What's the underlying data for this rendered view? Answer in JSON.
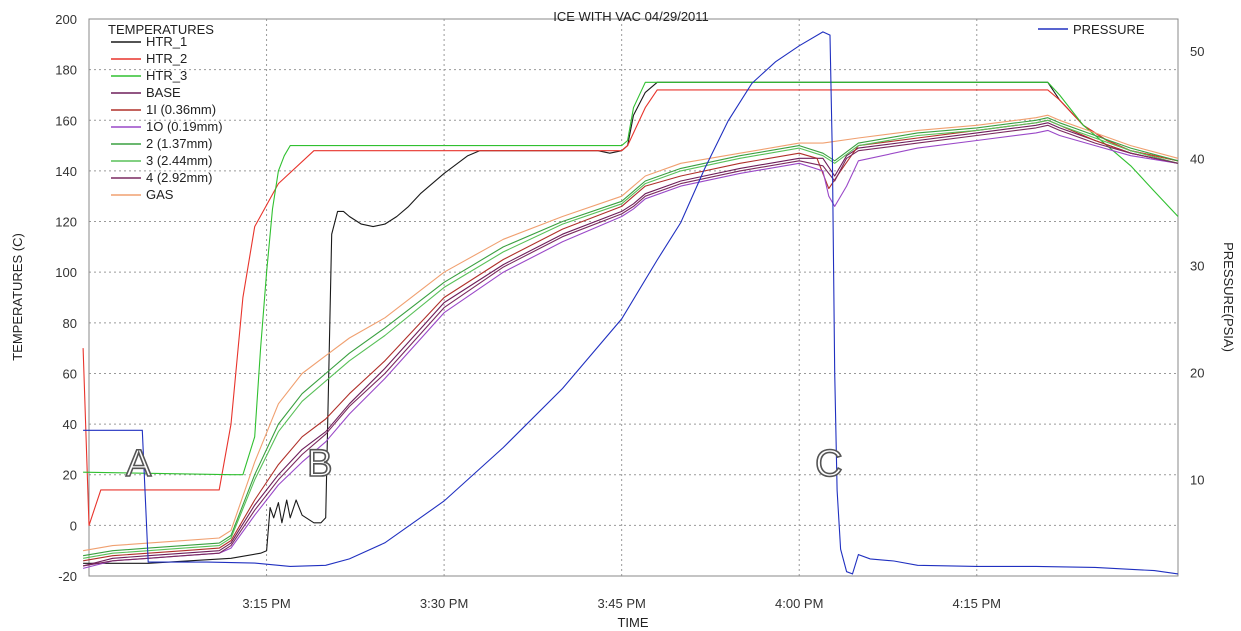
{
  "chart_data": {
    "type": "line",
    "title": "ICE WITH VAC 04/29/2011",
    "xlabel": "TIME",
    "ylabel": "TEMPERATURES (C)",
    "y2label": "PRESSURE(PSIA)",
    "x_unit": "minutes after 3:00 PM",
    "xlim": [
      0,
      92
    ],
    "ylim": [
      -20,
      200
    ],
    "y2lim": [
      1,
      53
    ],
    "x_ticks": [
      15,
      30,
      45,
      60,
      75
    ],
    "x_tick_labels": [
      "3:15 PM",
      "3:30 PM",
      "3:45 PM",
      "4:00 PM",
      "4:15 PM"
    ],
    "y_ticks": [
      -20,
      0,
      20,
      40,
      60,
      80,
      100,
      120,
      140,
      160,
      180,
      200
    ],
    "y2_ticks": [
      10,
      20,
      30,
      40,
      50
    ],
    "grid": true,
    "legend_title": "TEMPERATURES",
    "legend_placement": "top-left",
    "legend2_placement": "top-right",
    "annotations": [
      {
        "text": "A",
        "x": 4.2,
        "y": 25
      },
      {
        "text": "B",
        "x": 19.5,
        "y": 25
      },
      {
        "text": "C",
        "x": 62.5,
        "y": 25
      }
    ],
    "series": [
      {
        "name": "HTR_1",
        "color": "#1a1a1a",
        "x": [
          -0.5,
          5,
          12,
          14.5,
          15,
          15.3,
          15.6,
          16,
          16.3,
          16.7,
          17,
          17.5,
          18,
          19,
          19.6,
          20,
          20.5,
          21,
          21.5,
          22,
          23,
          24,
          25,
          26,
          27,
          28,
          30,
          32,
          33,
          36,
          40,
          43,
          44,
          45,
          45.5,
          46,
          47,
          48,
          50,
          55,
          60,
          65,
          70,
          75,
          80,
          81,
          82,
          84,
          86,
          88,
          90,
          92
        ],
        "y": [
          -15,
          -15,
          -13,
          -11,
          -10,
          7,
          3,
          9,
          1,
          10,
          3,
          10,
          4,
          1,
          1,
          3,
          115,
          124,
          124,
          122,
          119,
          118,
          119,
          122,
          126,
          131,
          139,
          146,
          148,
          148,
          148,
          148,
          147,
          148,
          150,
          162,
          171,
          175,
          175,
          175,
          175,
          175,
          175,
          175,
          175,
          175,
          168,
          158,
          152,
          148,
          146,
          144
        ]
      },
      {
        "name": "HTR_2",
        "color": "#e8342c",
        "x": [
          -0.5,
          0,
          1,
          2,
          4,
          8,
          11,
          12,
          13,
          14,
          16,
          19,
          45,
          45.5,
          47,
          48,
          81,
          82,
          84,
          86,
          88,
          90,
          92
        ],
        "y": [
          70,
          0,
          14,
          14,
          14,
          14,
          14,
          40,
          90,
          118,
          135,
          148,
          148,
          150,
          165,
          172,
          172,
          168,
          158,
          152,
          148,
          146,
          144
        ]
      },
      {
        "name": "HTR_3",
        "color": "#30c030",
        "x": [
          -0.5,
          12,
          13,
          14,
          14.5,
          15,
          15.5,
          16,
          16.5,
          17,
          17.5,
          18,
          45,
          45.5,
          46,
          47,
          81,
          82,
          84,
          86,
          88,
          90,
          92
        ],
        "y": [
          21,
          20,
          20,
          35,
          70,
          100,
          125,
          140,
          146,
          150,
          150,
          150,
          150,
          152,
          165,
          175,
          175,
          170,
          158,
          150,
          142,
          132,
          122
        ]
      },
      {
        "name": "BASE",
        "color": "#6e1e5a",
        "x": [
          -0.5,
          2,
          5,
          8,
          11,
          12,
          14,
          16,
          18,
          20,
          22,
          25,
          30,
          35,
          40,
          45,
          46,
          47,
          50,
          55,
          60,
          62,
          63,
          64,
          65,
          70,
          75,
          80,
          81,
          82,
          85,
          88,
          92
        ],
        "y": [
          -16,
          -13,
          -12,
          -11,
          -10,
          -7,
          8,
          20,
          30,
          37,
          48,
          62,
          88,
          103,
          115,
          124,
          127,
          131,
          136,
          141,
          145,
          145,
          138,
          146,
          149,
          152,
          155,
          158,
          159,
          157,
          152,
          147,
          143
        ]
      },
      {
        "name": "1I (0.36mm)",
        "color": "#b0302a",
        "x": [
          -0.5,
          2,
          5,
          8,
          11,
          12,
          14,
          16,
          18,
          20,
          22,
          25,
          30,
          35,
          40,
          45,
          46,
          47,
          50,
          55,
          60,
          61.5,
          62.5,
          63.5,
          65,
          70,
          75,
          80,
          81,
          82,
          85,
          88,
          92
        ],
        "y": [
          -14,
          -12,
          -11,
          -10,
          -9,
          -6,
          10,
          24,
          35,
          42,
          52,
          65,
          90,
          105,
          117,
          126,
          130,
          134,
          138,
          143,
          147,
          145,
          133,
          140,
          150,
          153,
          156,
          159,
          160,
          158,
          152,
          147,
          143
        ]
      },
      {
        "name": "1O (0.19mm)",
        "color": "#9a48c8",
        "x": [
          -0.5,
          2,
          5,
          8,
          11,
          12,
          14,
          16,
          18,
          20,
          22,
          25,
          30,
          35,
          40,
          45,
          46,
          47,
          50,
          55,
          60,
          62,
          62.5,
          63,
          64,
          65,
          70,
          75,
          80,
          81,
          82,
          85,
          88,
          92
        ],
        "y": [
          -17,
          -14,
          -13,
          -12,
          -11,
          -9,
          4,
          16,
          25,
          33,
          44,
          58,
          84,
          100,
          112,
          122,
          125,
          129,
          134,
          139,
          143,
          140,
          130,
          126,
          134,
          144,
          149,
          152,
          155,
          156,
          154,
          150,
          146,
          143
        ]
      },
      {
        "name": "2 (1.37mm)",
        "color": "#3aa040",
        "x": [
          -0.5,
          2,
          5,
          8,
          11,
          12,
          14,
          16,
          18,
          20,
          22,
          25,
          30,
          35,
          40,
          45,
          46,
          47,
          50,
          55,
          60,
          62,
          63,
          65,
          70,
          75,
          80,
          81,
          82,
          85,
          88,
          92
        ],
        "y": [
          -12,
          -10,
          -9,
          -8,
          -7,
          -4,
          20,
          40,
          52,
          60,
          68,
          78,
          96,
          110,
          120,
          128,
          132,
          136,
          141,
          146,
          150,
          147,
          144,
          151,
          155,
          157,
          160,
          161,
          159,
          154,
          149,
          144
        ]
      },
      {
        "name": "3 (2.44mm)",
        "color": "#58c058",
        "x": [
          -0.5,
          2,
          5,
          8,
          11,
          12,
          14,
          16,
          18,
          20,
          22,
          25,
          30,
          35,
          40,
          45,
          46,
          47,
          50,
          55,
          60,
          62,
          63,
          65,
          70,
          75,
          80,
          81,
          82,
          85,
          88,
          92
        ],
        "y": [
          -13,
          -11,
          -10,
          -9,
          -8,
          -5,
          18,
          37,
          49,
          57,
          65,
          75,
          94,
          108,
          119,
          127,
          131,
          135,
          140,
          145,
          149,
          146,
          143,
          150,
          154,
          156,
          159,
          160,
          158,
          153,
          148,
          143
        ]
      },
      {
        "name": "4 (2.92mm)",
        "color": "#7a2a60",
        "x": [
          -0.5,
          2,
          5,
          8,
          11,
          12,
          14,
          16,
          18,
          20,
          22,
          25,
          30,
          35,
          40,
          45,
          46,
          47,
          50,
          55,
          60,
          62,
          63,
          64,
          65,
          70,
          75,
          80,
          81,
          82,
          85,
          88,
          92
        ],
        "y": [
          -16,
          -14,
          -13,
          -12,
          -11,
          -8,
          6,
          18,
          28,
          36,
          47,
          60,
          86,
          102,
          114,
          123,
          126,
          130,
          135,
          140,
          144,
          142,
          136,
          145,
          148,
          151,
          154,
          157,
          158,
          156,
          151,
          147,
          143
        ]
      },
      {
        "name": "GAS",
        "color": "#f0a070",
        "x": [
          -0.5,
          2,
          5,
          8,
          11,
          12,
          14,
          16,
          18,
          20,
          22,
          25,
          30,
          35,
          40,
          45,
          46,
          47,
          50,
          55,
          60,
          62,
          65,
          70,
          75,
          80,
          81,
          82,
          85,
          88,
          92
        ],
        "y": [
          -10,
          -8,
          -7,
          -6,
          -5,
          -2,
          25,
          48,
          60,
          67,
          74,
          82,
          100,
          113,
          122,
          130,
          134,
          138,
          143,
          147,
          151,
          151,
          153,
          156,
          158,
          161,
          162,
          160,
          155,
          150,
          145
        ]
      }
    ],
    "pressure_series": {
      "name": "PRESSURE",
      "color": "#2030c0",
      "axis": "right",
      "x": [
        -0.5,
        4.5,
        5,
        10,
        14,
        17,
        20,
        22,
        25,
        30,
        35,
        40,
        45,
        48,
        50,
        52,
        54,
        56,
        58,
        60,
        62,
        62.6,
        62.8,
        63,
        63.2,
        63.5,
        64,
        64.5,
        65,
        66,
        68,
        70,
        75,
        80,
        85,
        90,
        92
      ],
      "y": [
        14.6,
        14.6,
        2.3,
        2.3,
        2.2,
        1.9,
        2.0,
        2.6,
        4.1,
        8.0,
        13.0,
        18.5,
        25.0,
        30.5,
        34.0,
        39.0,
        43.5,
        47.0,
        49.0,
        50.5,
        51.8,
        51.5,
        40.0,
        20.0,
        9.0,
        3.5,
        1.4,
        1.2,
        3.0,
        2.6,
        2.4,
        2.0,
        1.9,
        1.9,
        1.8,
        1.5,
        1.2
      ]
    }
  }
}
